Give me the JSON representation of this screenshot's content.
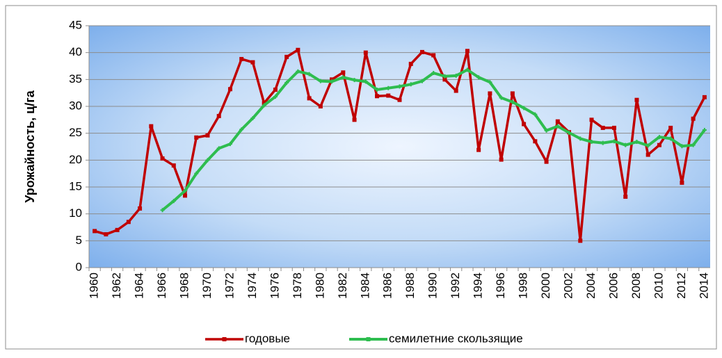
{
  "chart_data": {
    "type": "line",
    "y_label": "Урожайность, ц/га",
    "categories": [
      "1960",
      null,
      "1962",
      null,
      "1964",
      null,
      "1966",
      null,
      "1968",
      null,
      "1970",
      null,
      "1972",
      null,
      "1974",
      null,
      "1976",
      null,
      "1978",
      null,
      "1980",
      null,
      "1982",
      null,
      "1984",
      null,
      "1986",
      null,
      "1988",
      null,
      "1990",
      null,
      "1992",
      null,
      "1994",
      null,
      "1996",
      null,
      "1998",
      null,
      "2000",
      null,
      "2002",
      null,
      "2004",
      null,
      "2006",
      null,
      "2008",
      null,
      "2010",
      null,
      "2012",
      null,
      "2014"
    ],
    "series": [
      {
        "name": "годовые",
        "color": "#c00000",
        "values": [
          6.8,
          6.2,
          7.0,
          8.5,
          11.0,
          26.3,
          20.3,
          19.0,
          13.4,
          24.2,
          24.6,
          28.2,
          33.2,
          38.8,
          38.2,
          30.6,
          33.1,
          39.2,
          40.5,
          31.5,
          30.0,
          35.0,
          36.3,
          27.5,
          40.0,
          31.9,
          32.0,
          31.2,
          37.9,
          40.1,
          39.5,
          35.0,
          32.9,
          40.3,
          21.9,
          32.4,
          20.1,
          32.4,
          26.7,
          23.5,
          19.7,
          27.2,
          25.2,
          5.0,
          27.5,
          26.0,
          26.0,
          13.2,
          31.2,
          21.0,
          22.8,
          26.0,
          15.8,
          27.7,
          31.7
        ]
      },
      {
        "name": "семилетние скользящие",
        "color": "#2ebd4f",
        "values": [
          null,
          null,
          null,
          null,
          null,
          null,
          10.7,
          12.4,
          14.3,
          17.5,
          20.0,
          22.2,
          23.0,
          25.7,
          27.8,
          30.2,
          31.8,
          34.4,
          36.5,
          36.0,
          34.7,
          34.6,
          35.4,
          34.9,
          34.6,
          33.1,
          33.4,
          33.7,
          34.1,
          34.7,
          36.2,
          35.6,
          35.7,
          36.8,
          35.4,
          34.5,
          31.6,
          30.8,
          29.7,
          28.5,
          25.5,
          26.3,
          25.1,
          24.0,
          23.4,
          23.2,
          23.5,
          22.8,
          23.4,
          22.7,
          24.3,
          24.0,
          22.6,
          22.8,
          25.6
        ]
      }
    ],
    "ylim": [
      0,
      45
    ],
    "yticks": [
      0,
      5,
      10,
      15,
      20,
      25,
      30,
      35,
      40,
      45
    ],
    "grid": true,
    "legend": "bottom"
  }
}
